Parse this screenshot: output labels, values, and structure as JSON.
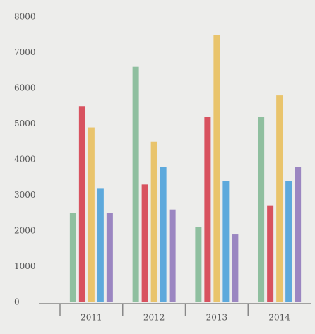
{
  "chart_data": {
    "type": "bar",
    "categories": [
      "2011",
      "2012",
      "2013",
      "2014"
    ],
    "series": [
      {
        "color": "#8fbf9f",
        "values": [
          2500,
          6600,
          2100,
          5200
        ]
      },
      {
        "color": "#d8525f",
        "values": [
          5500,
          3300,
          5200,
          2700
        ]
      },
      {
        "color": "#e9c46c",
        "values": [
          4900,
          4500,
          7500,
          5800
        ]
      },
      {
        "color": "#5da9dc",
        "values": [
          3200,
          3800,
          3400,
          3400
        ]
      },
      {
        "color": "#9b86c1",
        "values": [
          2500,
          2600,
          1900,
          3800
        ]
      }
    ],
    "ylim": [
      0,
      8000
    ],
    "yticks": [
      0,
      1000,
      2000,
      3000,
      4000,
      5000,
      6000,
      7000,
      8000
    ],
    "grid": false
  }
}
